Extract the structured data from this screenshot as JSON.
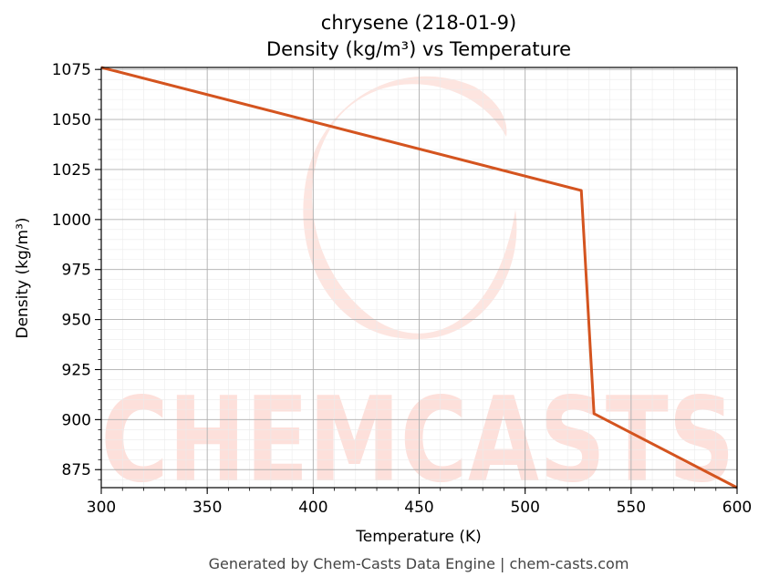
{
  "chart_data": {
    "type": "line",
    "title_line1": "chrysene (218-01-9)",
    "title_line2": "Density (kg/m³) vs Temperature",
    "xlabel": "Temperature (K)",
    "ylabel": "Density (kg/m³)",
    "xlim": [
      300,
      600
    ],
    "ylim": [
      866,
      1076
    ],
    "xticks": [
      300,
      350,
      400,
      450,
      500,
      550,
      600
    ],
    "yticks": [
      875,
      900,
      925,
      950,
      975,
      1000,
      1025,
      1050,
      1075
    ],
    "grid": true,
    "line_color": "#d4541f",
    "series": [
      {
        "x": [
          300,
          526.5,
          532.5,
          600
        ],
        "y": [
          1076,
          1014.5,
          903,
          866
        ]
      }
    ]
  },
  "watermark": {
    "text": "CHEMCASTS",
    "color": "#fde0db"
  },
  "footer": "Generated by Chem-Casts Data Engine | chem-casts.com"
}
